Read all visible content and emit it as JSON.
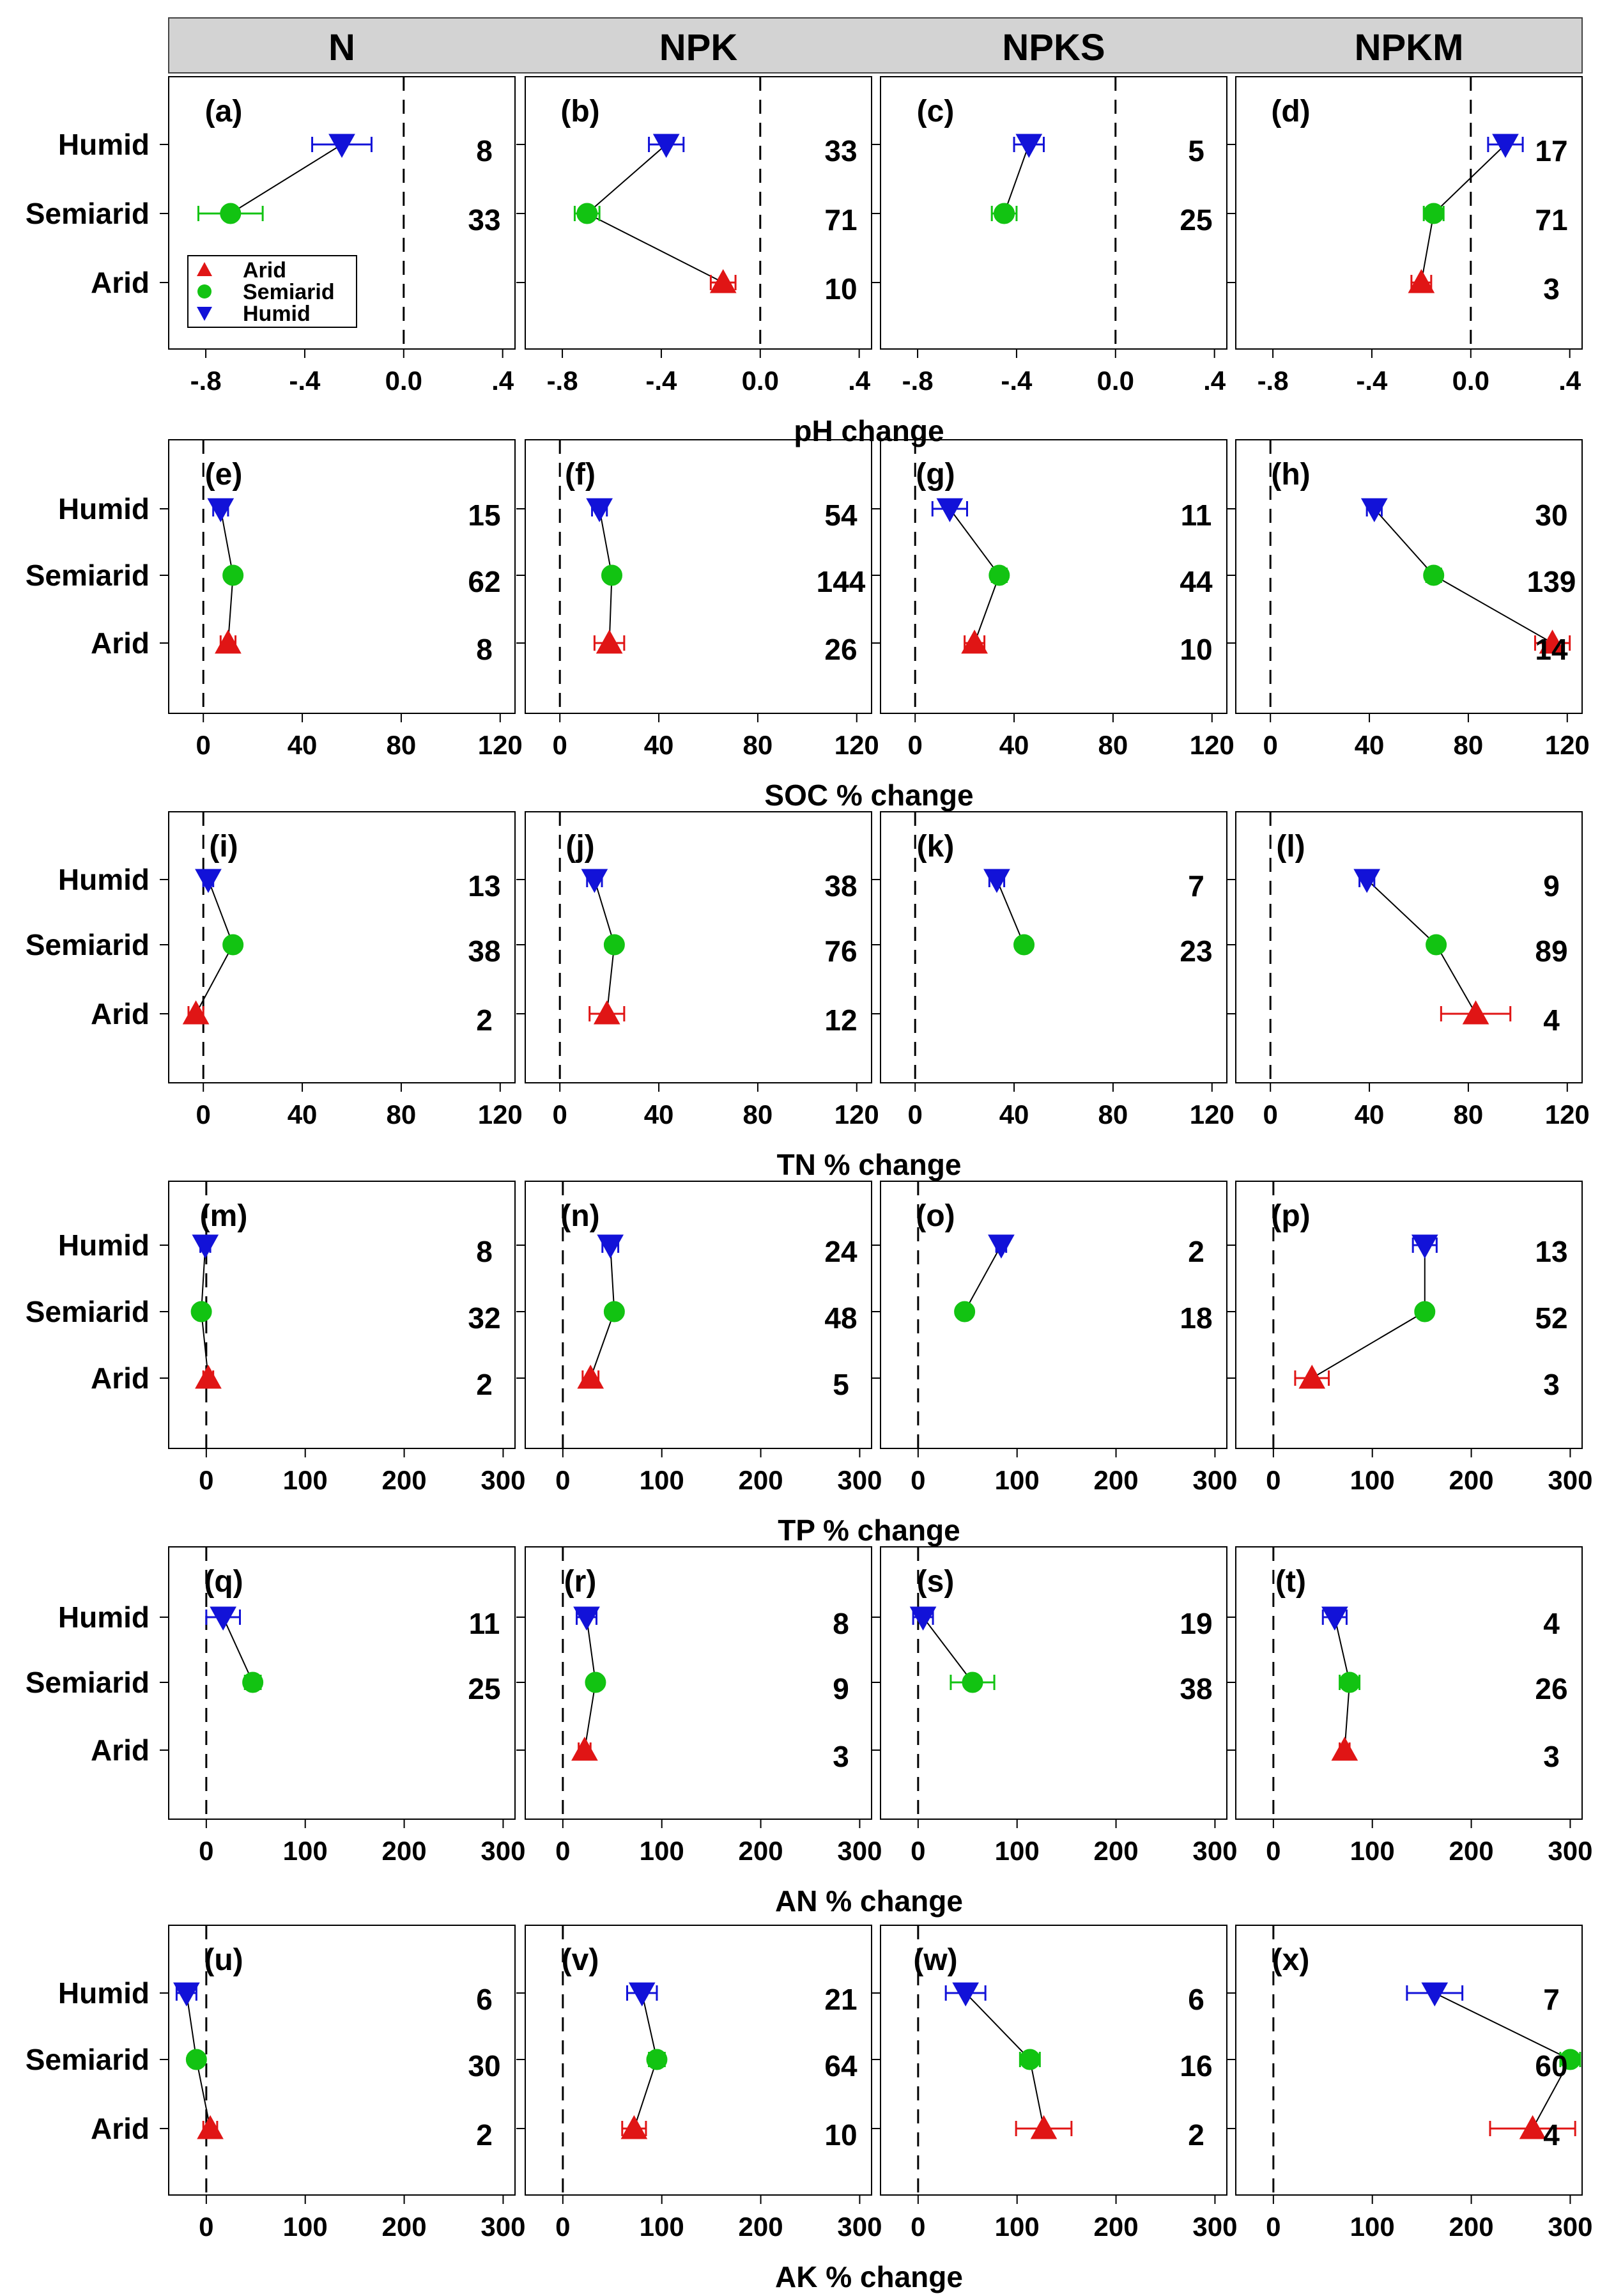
{
  "chart_data": {
    "type": "scatter",
    "title": "",
    "columns": [
      "N",
      "NPK",
      "NPKS",
      "NPKM"
    ],
    "categories": [
      "Humid",
      "Semiarid",
      "Arid"
    ],
    "legend": {
      "placement": "bottom-left of panel (a)",
      "entries": [
        {
          "name": "Arid",
          "color": "#e01515",
          "marker": "triangle-up"
        },
        {
          "name": "Semiarid",
          "color": "#12c312",
          "marker": "circle"
        },
        {
          "name": "Humid",
          "color": "#1212d8",
          "marker": "triangle-down"
        }
      ]
    },
    "rows": [
      {
        "xlabel": "pH change",
        "xlim": [
          -0.95,
          0.45
        ],
        "ticks": [
          -0.8,
          -0.4,
          0.0,
          0.4
        ],
        "tick_labels": [
          "-.8",
          "-.4",
          "0.0",
          ".4"
        ],
        "panels": [
          {
            "label": "(a)",
            "series": [
              {
                "name": "Humid",
                "value": -0.25,
                "err": 0.12,
                "n": "8"
              },
              {
                "name": "Semiarid",
                "value": -0.7,
                "err": 0.13,
                "n": "33"
              }
            ]
          },
          {
            "label": "(b)",
            "series": [
              {
                "name": "Humid",
                "value": -0.38,
                "err": 0.07,
                "n": "33"
              },
              {
                "name": "Semiarid",
                "value": -0.7,
                "err": 0.05,
                "n": "71"
              },
              {
                "name": "Arid",
                "value": -0.15,
                "err": 0.05,
                "n": "10"
              }
            ]
          },
          {
            "label": "(c)",
            "series": [
              {
                "name": "Humid",
                "value": -0.35,
                "err": 0.06,
                "n": "5"
              },
              {
                "name": "Semiarid",
                "value": -0.45,
                "err": 0.05,
                "n": "25"
              }
            ]
          },
          {
            "label": "(d)",
            "series": [
              {
                "name": "Humid",
                "value": 0.14,
                "err": 0.07,
                "n": "17"
              },
              {
                "name": "Semiarid",
                "value": -0.15,
                "err": 0.04,
                "n": "71"
              },
              {
                "name": "Arid",
                "value": -0.2,
                "err": 0.04,
                "n": "3"
              }
            ]
          }
        ]
      },
      {
        "xlabel": "SOC % change",
        "xlim": [
          -14,
          126
        ],
        "ticks": [
          0,
          40,
          80,
          120
        ],
        "tick_labels": [
          "0",
          "40",
          "80",
          "120"
        ],
        "panels": [
          {
            "label": "(e)",
            "series": [
              {
                "name": "Humid",
                "value": 7,
                "err": 3,
                "n": "15"
              },
              {
                "name": "Semiarid",
                "value": 12,
                "err": 2,
                "n": "62"
              },
              {
                "name": "Arid",
                "value": 10,
                "err": 3,
                "n": "8"
              }
            ]
          },
          {
            "label": "(f)",
            "series": [
              {
                "name": "Humid",
                "value": 16,
                "err": 3,
                "n": "54"
              },
              {
                "name": "Semiarid",
                "value": 21,
                "err": 2,
                "n": "144"
              },
              {
                "name": "Arid",
                "value": 20,
                "err": 6,
                "n": "26"
              }
            ]
          },
          {
            "label": "(g)",
            "series": [
              {
                "name": "Humid",
                "value": 14,
                "err": 7,
                "n": "11"
              },
              {
                "name": "Semiarid",
                "value": 34,
                "err": 3,
                "n": "44"
              },
              {
                "name": "Arid",
                "value": 24,
                "err": 4,
                "n": "10"
              }
            ]
          },
          {
            "label": "(h)",
            "series": [
              {
                "name": "Humid",
                "value": 42,
                "err": 3,
                "n": "30"
              },
              {
                "name": "Semiarid",
                "value": 66,
                "err": 3,
                "n": "139"
              },
              {
                "name": "Arid",
                "value": 114,
                "err": 7,
                "n": "14"
              }
            ]
          }
        ]
      },
      {
        "xlabel": "TN % change",
        "xlim": [
          -14,
          126
        ],
        "ticks": [
          0,
          40,
          80,
          120
        ],
        "tick_labels": [
          "0",
          "40",
          "80",
          "120"
        ],
        "panels": [
          {
            "label": "(i)",
            "series": [
              {
                "name": "Humid",
                "value": 2,
                "err": 2,
                "n": "13"
              },
              {
                "name": "Semiarid",
                "value": 12,
                "err": 2,
                "n": "38"
              },
              {
                "name": "Arid",
                "value": -3,
                "err": 3,
                "n": "2"
              }
            ]
          },
          {
            "label": "(j)",
            "series": [
              {
                "name": "Humid",
                "value": 14,
                "err": 3,
                "n": "38"
              },
              {
                "name": "Semiarid",
                "value": 22,
                "err": 2,
                "n": "76"
              },
              {
                "name": "Arid",
                "value": 19,
                "err": 7,
                "n": "12"
              }
            ]
          },
          {
            "label": "(k)",
            "series": [
              {
                "name": "Humid",
                "value": 33,
                "err": 3,
                "n": "7"
              },
              {
                "name": "Semiarid",
                "value": 44,
                "err": 2,
                "n": "23"
              }
            ]
          },
          {
            "label": "(l)",
            "series": [
              {
                "name": "Humid",
                "value": 39,
                "err": 3,
                "n": "9"
              },
              {
                "name": "Semiarid",
                "value": 67,
                "err": 2,
                "n": "89"
              },
              {
                "name": "Arid",
                "value": 83,
                "err": 14,
                "n": "4"
              }
            ]
          }
        ]
      },
      {
        "xlabel": "TP % change",
        "xlim": [
          -38,
          312
        ],
        "ticks": [
          0,
          100,
          200,
          300
        ],
        "tick_labels": [
          "0",
          "100",
          "200",
          "300"
        ],
        "panels": [
          {
            "label": "(m)",
            "series": [
              {
                "name": "Humid",
                "value": -1,
                "err": 5,
                "n": "8"
              },
              {
                "name": "Semiarid",
                "value": -5,
                "err": 3,
                "n": "32"
              },
              {
                "name": "Arid",
                "value": 2,
                "err": 5,
                "n": "2"
              }
            ]
          },
          {
            "label": "(n)",
            "series": [
              {
                "name": "Humid",
                "value": 48,
                "err": 8,
                "n": "24"
              },
              {
                "name": "Semiarid",
                "value": 52,
                "err": 6,
                "n": "48"
              },
              {
                "name": "Arid",
                "value": 28,
                "err": 8,
                "n": "5"
              }
            ]
          },
          {
            "label": "(o)",
            "series": [
              {
                "name": "Humid",
                "value": 84,
                "err": 5,
                "n": "2"
              },
              {
                "name": "Semiarid",
                "value": 47,
                "err": 4,
                "n": "18"
              }
            ]
          },
          {
            "label": "(p)",
            "series": [
              {
                "name": "Humid",
                "value": 153,
                "err": 12,
                "n": "13"
              },
              {
                "name": "Semiarid",
                "value": 153,
                "err": 6,
                "n": "52"
              },
              {
                "name": "Arid",
                "value": 39,
                "err": 17,
                "n": "3"
              }
            ]
          }
        ]
      },
      {
        "xlabel": "AN % change",
        "xlim": [
          -38,
          312
        ],
        "ticks": [
          0,
          100,
          200,
          300
        ],
        "tick_labels": [
          "0",
          "100",
          "200",
          "300"
        ],
        "panels": [
          {
            "label": "(q)",
            "series": [
              {
                "name": "Humid",
                "value": 17,
                "err": 17,
                "n": "11"
              },
              {
                "name": "Semiarid",
                "value": 47,
                "err": 8,
                "n": "25"
              }
            ]
          },
          {
            "label": "(r)",
            "series": [
              {
                "name": "Humid",
                "value": 24,
                "err": 10,
                "n": "8"
              },
              {
                "name": "Semiarid",
                "value": 33,
                "err": 6,
                "n": "9"
              },
              {
                "name": "Arid",
                "value": 22,
                "err": 6,
                "n": "3"
              }
            ]
          },
          {
            "label": "(s)",
            "series": [
              {
                "name": "Humid",
                "value": 5,
                "err": 10,
                "n": "19"
              },
              {
                "name": "Semiarid",
                "value": 55,
                "err": 22,
                "n": "38"
              }
            ]
          },
          {
            "label": "(t)",
            "series": [
              {
                "name": "Humid",
                "value": 62,
                "err": 12,
                "n": "4"
              },
              {
                "name": "Semiarid",
                "value": 77,
                "err": 10,
                "n": "26"
              },
              {
                "name": "Arid",
                "value": 72,
                "err": 5,
                "n": "3"
              }
            ]
          }
        ]
      },
      {
        "xlabel": "AK % change",
        "xlim": [
          -38,
          312
        ],
        "ticks": [
          0,
          100,
          200,
          300
        ],
        "tick_labels": [
          "0",
          "100",
          "200",
          "300"
        ],
        "panels": [
          {
            "label": "(u)",
            "series": [
              {
                "name": "Humid",
                "value": -20,
                "err": 10,
                "n": "6"
              },
              {
                "name": "Semiarid",
                "value": -10,
                "err": 6,
                "n": "30"
              },
              {
                "name": "Arid",
                "value": 4,
                "err": 7,
                "n": "2"
              }
            ]
          },
          {
            "label": "(v)",
            "series": [
              {
                "name": "Humid",
                "value": 80,
                "err": 15,
                "n": "21"
              },
              {
                "name": "Semiarid",
                "value": 95,
                "err": 8,
                "n": "64"
              },
              {
                "name": "Arid",
                "value": 72,
                "err": 12,
                "n": "10"
              }
            ]
          },
          {
            "label": "(w)",
            "series": [
              {
                "name": "Humid",
                "value": 48,
                "err": 20,
                "n": "6"
              },
              {
                "name": "Semiarid",
                "value": 113,
                "err": 10,
                "n": "16"
              },
              {
                "name": "Arid",
                "value": 127,
                "err": 28,
                "n": "2"
              }
            ]
          },
          {
            "label": "(x)",
            "series": [
              {
                "name": "Humid",
                "value": 163,
                "err": 28,
                "n": "7"
              },
              {
                "name": "Semiarid",
                "value": 300,
                "err": 10,
                "n": "60"
              },
              {
                "name": "Arid",
                "value": 262,
                "err": 43,
                "n": "4"
              }
            ]
          }
        ]
      }
    ]
  }
}
